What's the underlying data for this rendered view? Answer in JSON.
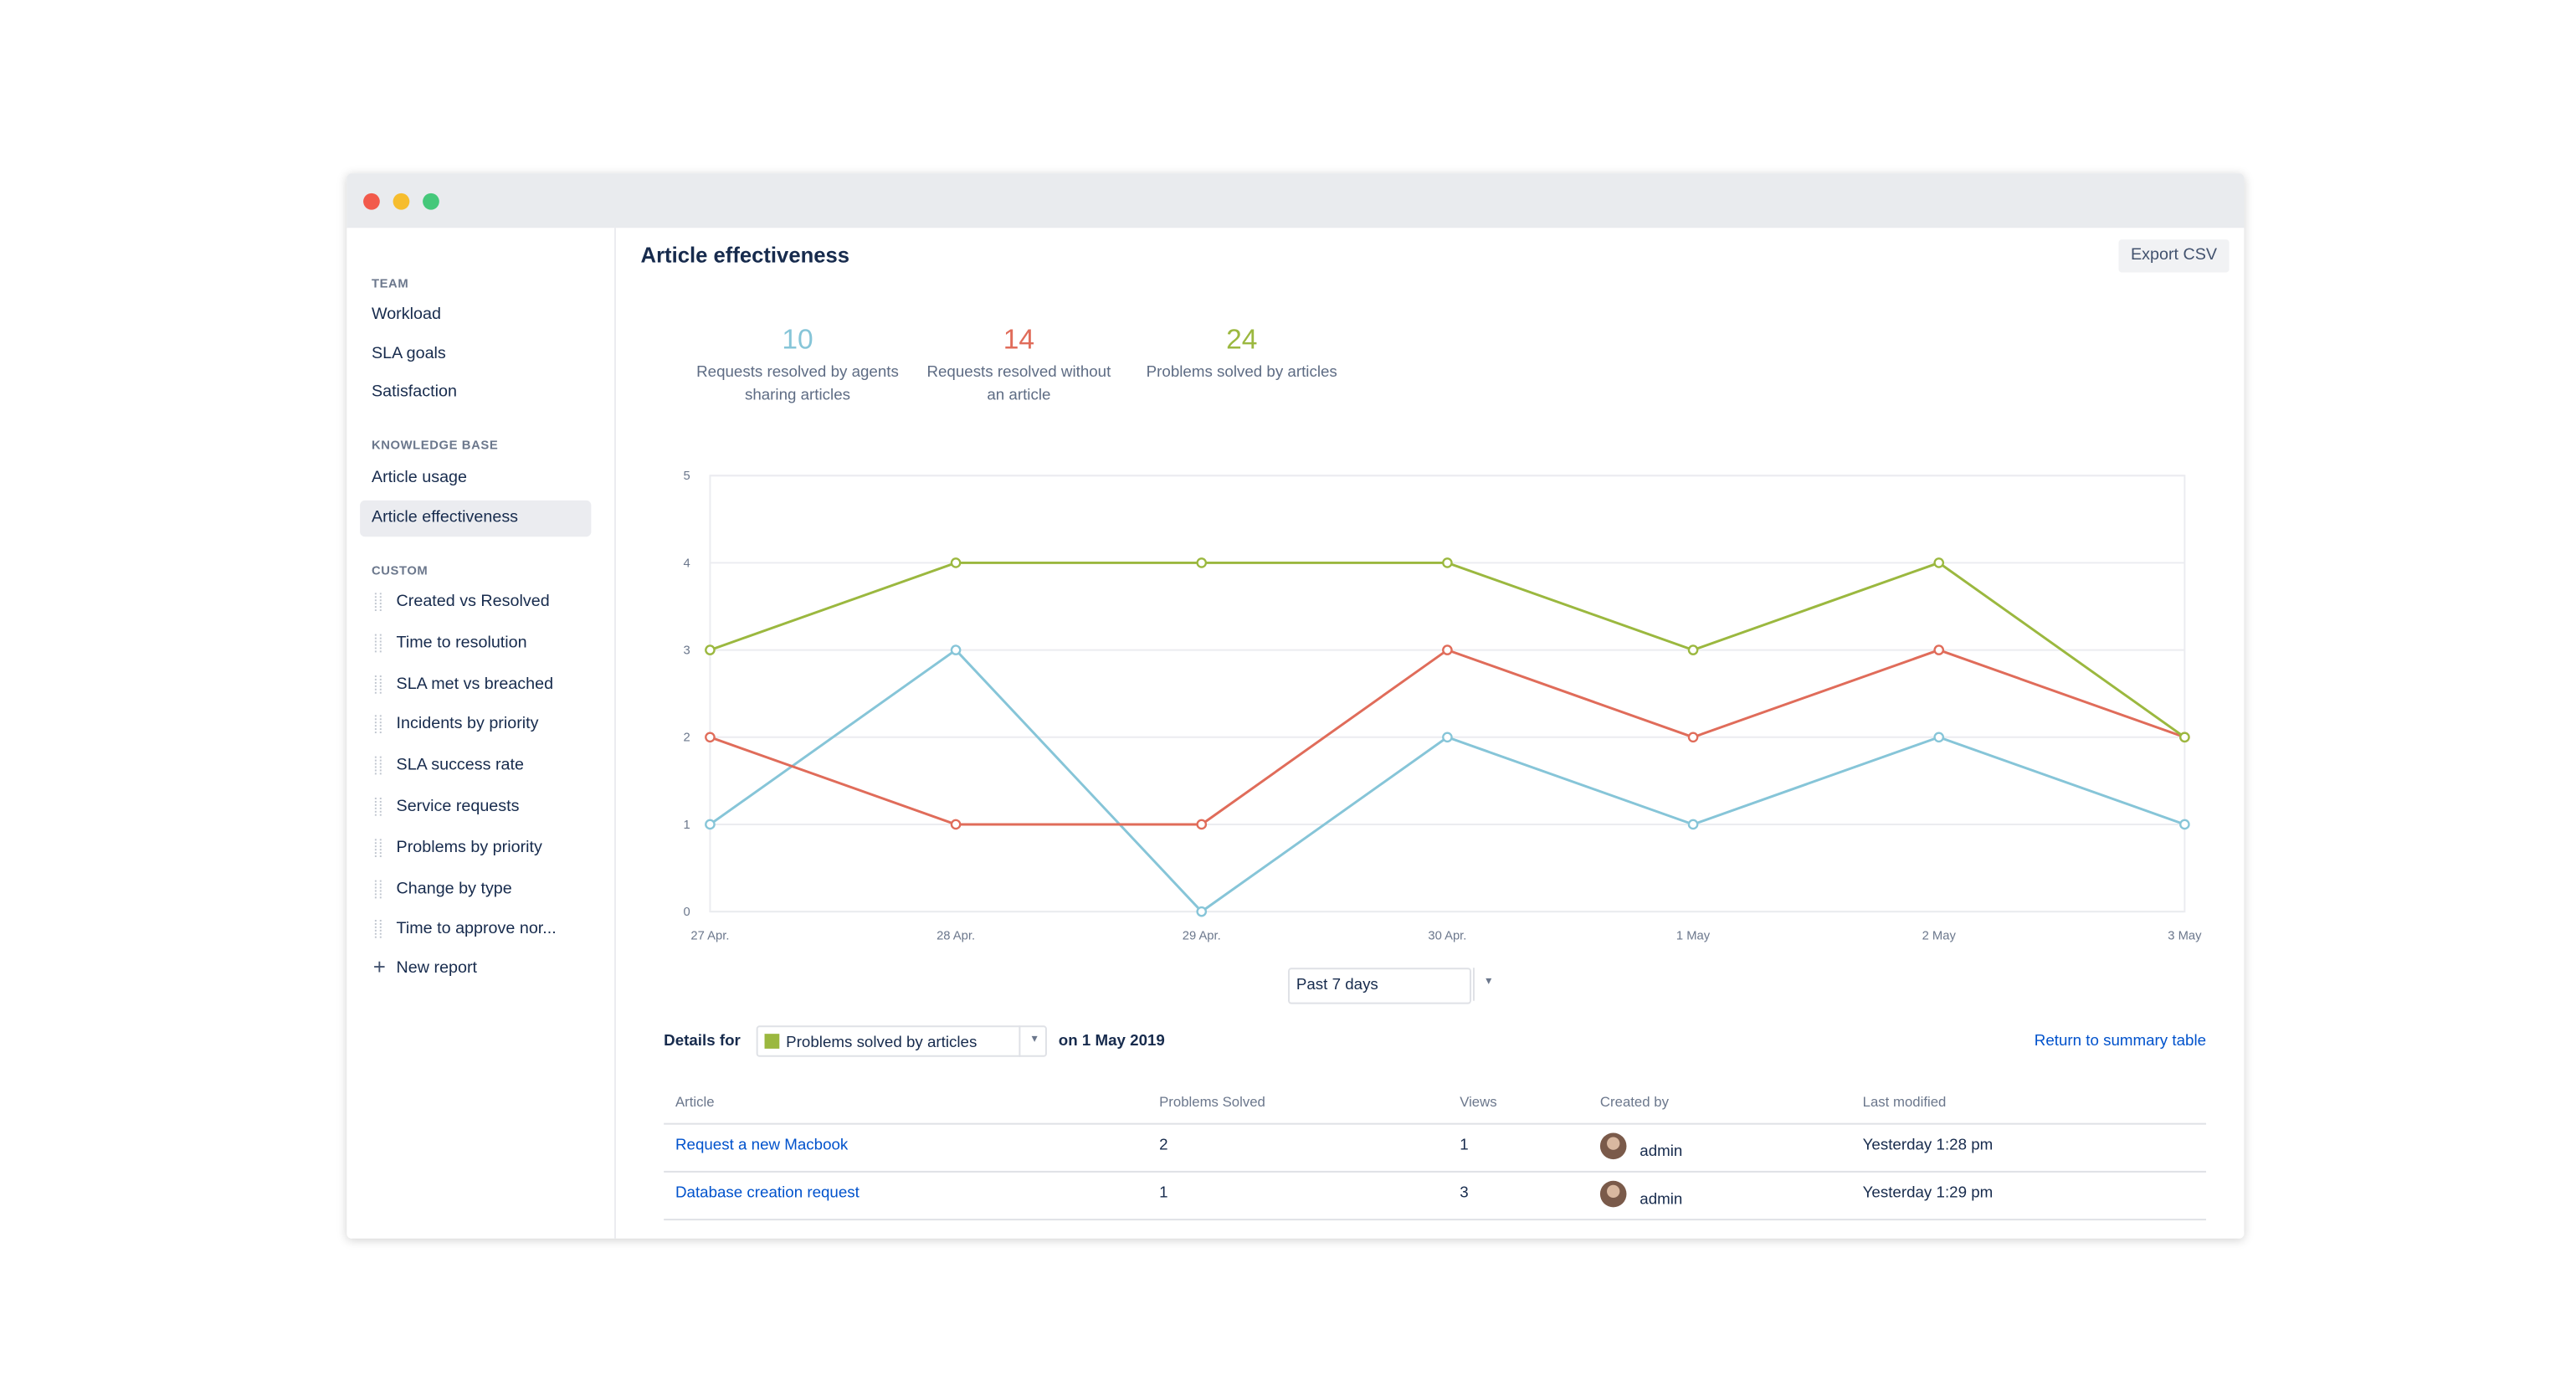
{
  "sidebar": {
    "sections": [
      {
        "heading": "TEAM",
        "items": [
          "Workload",
          "SLA goals",
          "Satisfaction"
        ]
      },
      {
        "heading": "KNOWLEDGE BASE",
        "items": [
          "Article usage",
          "Article effectiveness"
        ]
      },
      {
        "heading": "CUSTOM",
        "items": [
          "Created vs Resolved",
          "Time to resolution",
          "SLA met vs breached",
          "Incidents by priority",
          "SLA success rate",
          "Service requests",
          "Problems by priority",
          "Change by type",
          "Time to approve nor..."
        ]
      }
    ],
    "new_report": "New report"
  },
  "header": {
    "title": "Article effectiveness",
    "export": "Export CSV"
  },
  "stats": [
    10,
    14,
    24
  ],
  "chart_data": {
    "type": "line",
    "categories": [
      "27 Apr.",
      "28 Apr.",
      "29 Apr.",
      "30 Apr.",
      "1 May",
      "2 May",
      "3 May"
    ],
    "series": [
      {
        "name": "Requests resolved by agents sharing articles",
        "color": "#86c5d8",
        "values": [
          1,
          3,
          0,
          2,
          1,
          2,
          1
        ]
      },
      {
        "name": "Requests resolved without an article",
        "color": "#e06c5a",
        "values": [
          2,
          1,
          1,
          3,
          2,
          3,
          2
        ]
      },
      {
        "name": "Problems solved by articles",
        "color": "#9bb83f",
        "values": [
          3,
          4,
          4,
          4,
          3,
          4,
          2
        ]
      }
    ],
    "ylim": [
      0,
      5
    ],
    "yticks": [
      0,
      1,
      2,
      3,
      4,
      5
    ],
    "grid": true
  },
  "range_select": "Past 7 days",
  "details": {
    "label": "Details for",
    "date": "on 1 May 2019",
    "return": "Return to summary table"
  },
  "table": {
    "columns": [
      "Article",
      "Problems Solved",
      "Views",
      "Created by",
      "Last modified"
    ],
    "rows": [
      [
        "Request a new Macbook",
        2,
        1,
        "admin",
        "Yesterday 1:28 pm"
      ],
      [
        "Database creation request",
        1,
        3,
        "admin",
        "Yesterday 1:29 pm"
      ]
    ]
  }
}
